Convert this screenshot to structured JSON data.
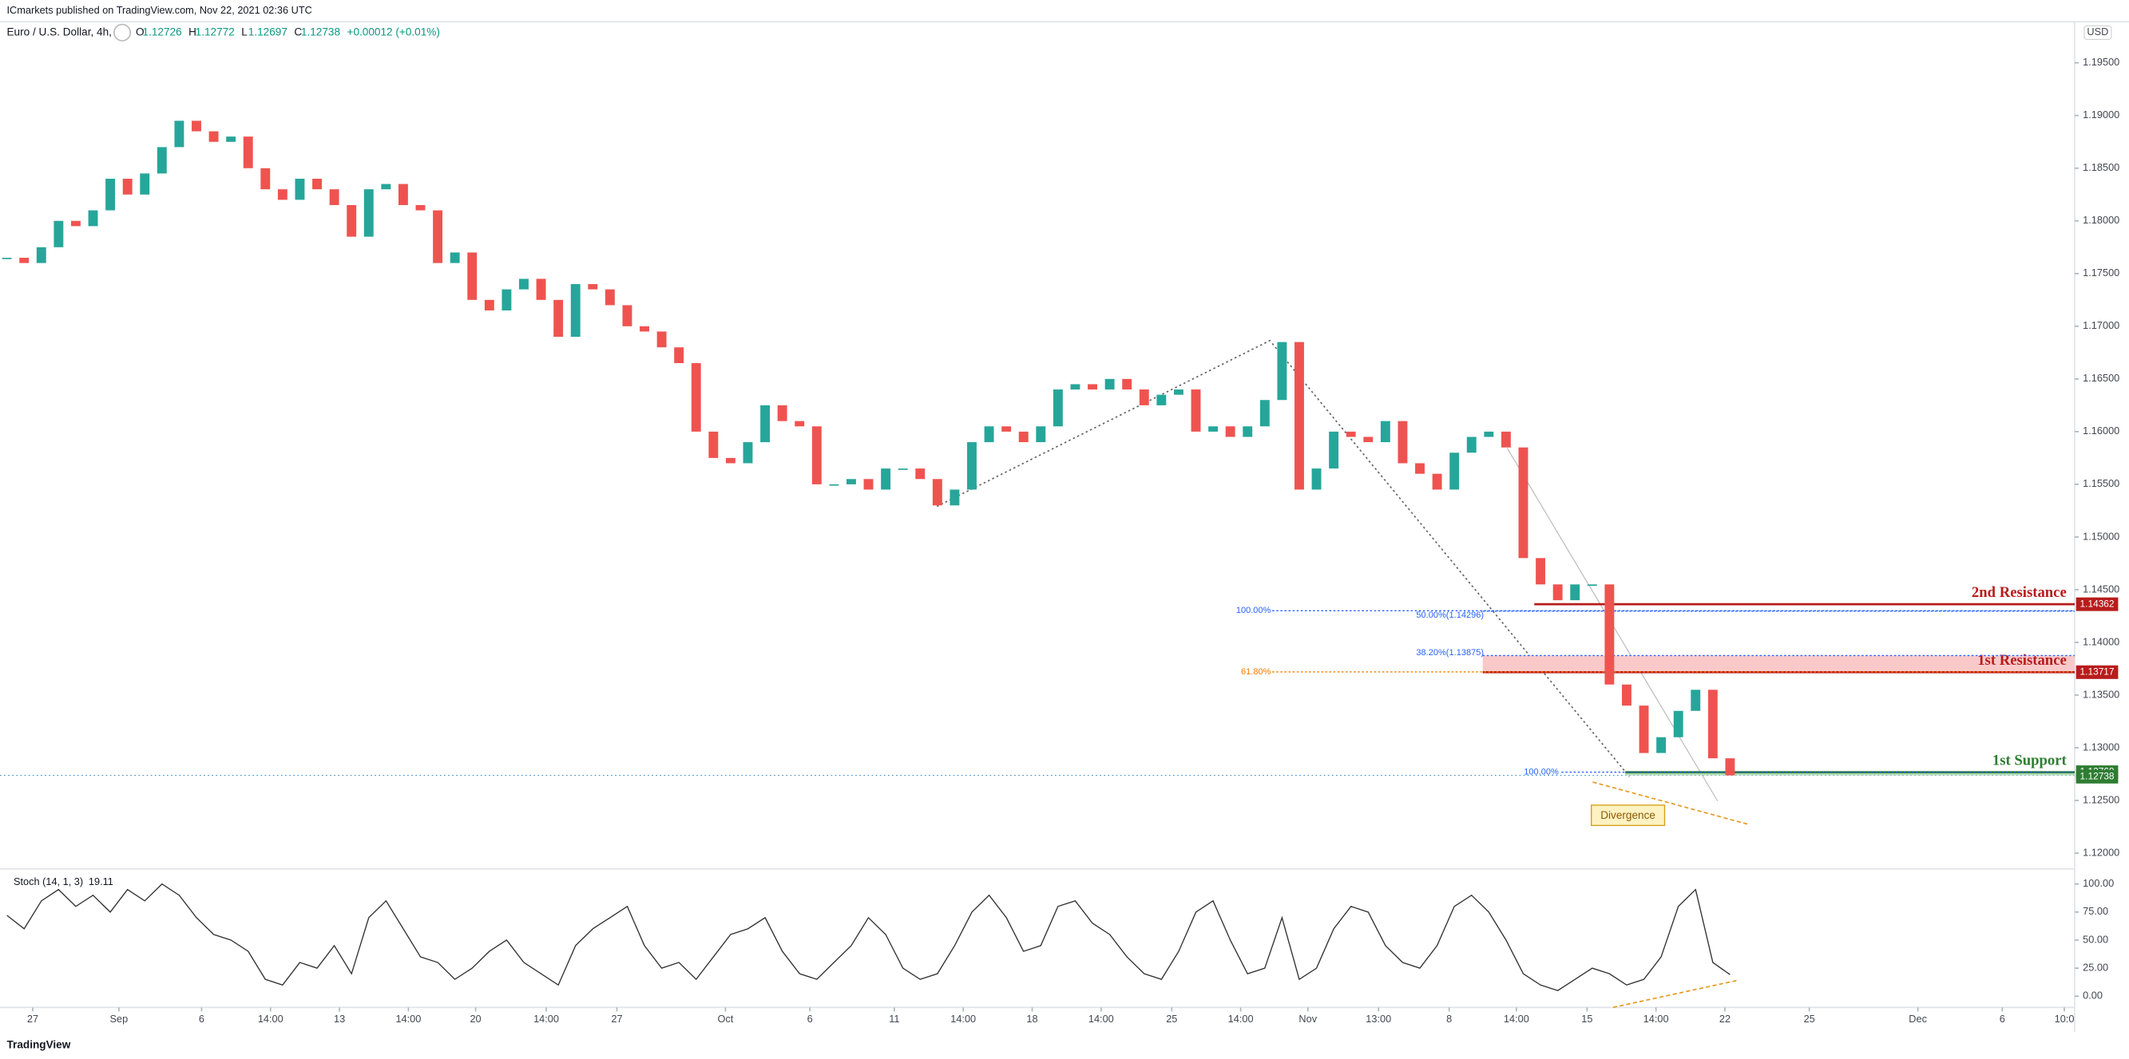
{
  "header": "ICmarkets published on TradingView.com, Nov 22, 2021 02:36 UTC",
  "footer": "TradingView",
  "chart_data": [
    {
      "type": "candlestick",
      "symbol": "Euro / U.S. Dollar, 4h,",
      "ohlc": [
        {
          "label": "O",
          "value": 1.12726
        },
        {
          "label": "H",
          "value": 1.12772
        },
        {
          "label": "L",
          "value": 1.12697
        },
        {
          "label": "C",
          "value": 1.12738
        }
      ],
      "change": "+0.00012 (+0.01%)",
      "currency": "USD",
      "x": [
        0,
        1,
        2,
        3,
        4,
        5,
        6,
        7,
        8,
        9,
        10,
        11,
        12,
        13,
        14,
        15,
        16,
        17,
        18,
        19,
        20,
        21,
        22,
        23,
        24,
        25,
        26,
        27,
        28,
        29,
        30,
        31,
        32,
        33,
        34,
        35,
        36,
        37,
        38,
        39,
        40,
        41,
        42,
        43,
        44,
        45,
        46,
        47,
        48,
        49,
        50,
        51,
        52,
        53,
        54,
        55,
        56,
        57,
        58,
        59,
        60,
        61,
        62,
        63,
        64,
        65,
        66,
        67,
        68,
        69,
        70,
        71,
        72,
        73,
        74,
        75,
        76,
        77,
        78,
        79,
        80,
        81,
        82,
        83,
        84,
        85,
        86,
        87,
        88,
        89,
        90,
        91,
        92,
        93,
        94,
        95,
        96,
        97,
        98,
        99,
        100
      ],
      "values": [
        1.1765,
        1.176,
        1.1775,
        1.18,
        1.1795,
        1.181,
        1.184,
        1.1825,
        1.1845,
        1.187,
        1.1895,
        1.1885,
        1.1875,
        1.188,
        1.185,
        1.183,
        1.182,
        1.184,
        1.183,
        1.1815,
        1.1785,
        1.183,
        1.1835,
        1.1815,
        1.181,
        1.176,
        1.177,
        1.1725,
        1.1715,
        1.1735,
        1.1745,
        1.1725,
        1.169,
        1.174,
        1.1735,
        1.172,
        1.17,
        1.1695,
        1.168,
        1.1665,
        1.16,
        1.1575,
        1.157,
        1.159,
        1.1625,
        1.161,
        1.1605,
        1.155,
        1.155,
        1.1555,
        1.1545,
        1.1565,
        1.1565,
        1.1555,
        1.153,
        1.1545,
        1.159,
        1.1605,
        1.16,
        1.159,
        1.1605,
        1.164,
        1.1645,
        1.164,
        1.165,
        1.164,
        1.1625,
        1.1635,
        1.164,
        1.16,
        1.1605,
        1.1595,
        1.1605,
        1.163,
        1.1685,
        1.1545,
        1.1565,
        1.16,
        1.1595,
        1.159,
        1.161,
        1.157,
        1.156,
        1.1545,
        1.158,
        1.1595,
        1.16,
        1.1585,
        1.148,
        1.1455,
        1.144,
        1.1455,
        1.1455,
        1.136,
        1.134,
        1.1295,
        1.131,
        1.1335,
        1.1355,
        1.129,
        1.12738
      ],
      "up_color": "#26a69a",
      "down_color": "#ef5350",
      "xlim": [
        -0.4,
        120
      ],
      "xticks": [
        {
          "value": 1.5,
          "label": "27"
        },
        {
          "value": 6.5,
          "label": "Sep"
        },
        {
          "value": 11.3,
          "label": "6"
        },
        {
          "value": 15.3,
          "label": "14:00"
        },
        {
          "value": 19.3,
          "label": "13"
        },
        {
          "value": 23.3,
          "label": "14:00"
        },
        {
          "value": 27.2,
          "label": "20"
        },
        {
          "value": 31.3,
          "label": "14:00"
        },
        {
          "value": 35.4,
          "label": "27"
        },
        {
          "value": 41.7,
          "label": "Oct"
        },
        {
          "value": 46.6,
          "label": "6"
        },
        {
          "value": 51.5,
          "label": "11"
        },
        {
          "value": 55.5,
          "label": "14:00"
        },
        {
          "value": 59.5,
          "label": "18"
        },
        {
          "value": 63.5,
          "label": "14:00"
        },
        {
          "value": 67.6,
          "label": "25"
        },
        {
          "value": 71.6,
          "label": "14:00"
        },
        {
          "value": 75.5,
          "label": "Nov"
        },
        {
          "value": 79.6,
          "label": "13:00"
        },
        {
          "value": 83.7,
          "label": "8"
        },
        {
          "value": 87.6,
          "label": "14:00"
        },
        {
          "value": 91.7,
          "label": "15"
        },
        {
          "value": 95.7,
          "label": "14:00"
        },
        {
          "value": 99.7,
          "label": "22"
        },
        {
          "value": 104.6,
          "label": "25"
        },
        {
          "value": 110.9,
          "label": "Dec"
        },
        {
          "value": 115.8,
          "label": "6"
        },
        {
          "value": 119.4,
          "label": "10:0"
        }
      ],
      "ylim": [
        1.1185,
        1.1989
      ],
      "yticks": [
        {
          "value": 1.195,
          "label": "1.19500"
        },
        {
          "value": 1.19,
          "label": "1.19000"
        },
        {
          "value": 1.185,
          "label": "1.18500"
        },
        {
          "value": 1.18,
          "label": "1.18000"
        },
        {
          "value": 1.175,
          "label": "1.17500"
        },
        {
          "value": 1.17,
          "label": "1.17000"
        },
        {
          "value": 1.165,
          "label": "1.16500"
        },
        {
          "value": 1.16,
          "label": "1.16000"
        },
        {
          "value": 1.155,
          "label": "1.15500"
        },
        {
          "value": 1.15,
          "label": "1.15000"
        },
        {
          "value": 1.145,
          "label": "1.14500"
        },
        {
          "value": 1.14,
          "label": "1.14000"
        },
        {
          "value": 1.135,
          "label": "1.13500"
        },
        {
          "value": 1.13,
          "label": "1.13000"
        },
        {
          "value": 1.125,
          "label": "1.12500"
        },
        {
          "value": 1.12,
          "label": "1.12000"
        }
      ],
      "levels": [
        {
          "name": "2nd Resistance",
          "value": 1.14362,
          "color": "#b71c1c"
        },
        {
          "name": "1st Resistance",
          "value": 1.13717,
          "zone": 1.13875,
          "color": "#b71c1c",
          "zone_color": "#f9c9c9"
        },
        {
          "name": "1st Support",
          "value": 1.12768,
          "zone": 1.12738,
          "color": "#2e7d32",
          "zone_color": "#b4dcb6"
        }
      ],
      "last_price": 1.12738,
      "fib_levels": [
        {
          "label": "100.00%",
          "value": 1.143,
          "color": "#2962ff"
        },
        {
          "label": "50.00%(1.14296)",
          "value": 1.14296,
          "color": "#2962ff"
        },
        {
          "label": "38.20%(1.13875)",
          "value": 1.13875,
          "color": "#2962ff"
        },
        {
          "label": "61.80%",
          "value": 1.1372,
          "color": "#f57c00"
        },
        {
          "label": "100.00%",
          "value": 1.12768,
          "color": "#2962ff"
        }
      ],
      "annotation": "Divergence"
    },
    {
      "type": "line",
      "title": "Stoch (14, 1, 3)",
      "color": "#333333",
      "values": [
        72,
        60,
        85,
        95,
        80,
        90,
        75,
        95,
        85,
        100,
        90,
        70,
        55,
        50,
        40,
        15,
        10,
        30,
        25,
        45,
        20,
        70,
        85,
        60,
        35,
        30,
        15,
        25,
        40,
        50,
        30,
        20,
        10,
        45,
        60,
        70,
        80,
        45,
        25,
        30,
        15,
        35,
        55,
        60,
        70,
        40,
        20,
        15,
        30,
        45,
        70,
        55,
        25,
        15,
        20,
        45,
        75,
        90,
        70,
        40,
        45,
        80,
        85,
        65,
        55,
        35,
        20,
        15,
        40,
        75,
        85,
        50,
        20,
        25,
        70,
        15,
        25,
        60,
        80,
        75,
        45,
        30,
        25,
        45,
        80,
        90,
        75,
        50,
        20,
        10,
        5,
        15,
        25,
        20,
        10,
        15,
        35,
        80,
        95,
        30,
        19.11
      ],
      "ylim": [
        -10,
        111
      ],
      "yticks": [
        {
          "value": 100,
          "label": "100.00"
        },
        {
          "value": 75,
          "label": "75.00"
        },
        {
          "value": 50,
          "label": "50.00"
        },
        {
          "value": 25,
          "label": "25.00"
        },
        {
          "value": 0,
          "label": "0.00"
        }
      ]
    }
  ]
}
